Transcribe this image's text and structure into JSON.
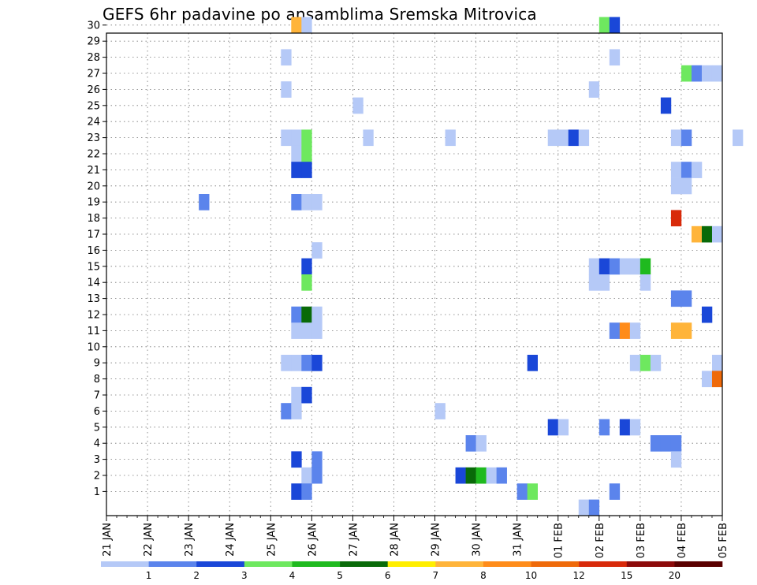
{
  "chart_data": {
    "type": "heatmap",
    "title": "GEFS 6hr padavine po ansamblima Sremska Mitrovica",
    "x_ticks": [
      "21 JAN",
      "22 JAN",
      "23 JAN",
      "24 JAN",
      "25 JAN",
      "26 JAN",
      "27 JAN",
      "28 JAN",
      "29 JAN",
      "30 JAN",
      "31 JAN",
      "01 FEB",
      "02 FEB",
      "03 FEB",
      "04 FEB",
      "05 FEB"
    ],
    "y_ticks": [
      "1",
      "2",
      "3",
      "4",
      "5",
      "6",
      "7",
      "8",
      "9",
      "10",
      "11",
      "12",
      "13",
      "14",
      "15",
      "16",
      "17",
      "18",
      "19",
      "20",
      "21",
      "22",
      "23",
      "24",
      "25",
      "26",
      "27",
      "28",
      "29",
      "30"
    ],
    "legend": {
      "labels": [
        "1",
        "2",
        "3",
        "4",
        "5",
        "6",
        "7",
        "8",
        "10",
        "12",
        "15",
        "20"
      ],
      "colors": [
        "#b5c9f7",
        "#5b84ec",
        "#1a47d8",
        "#6ee85f",
        "#1fba1f",
        "#096a09",
        "#ffee00",
        "#ffb43a",
        "#ff8c1a",
        "#ef6a0a",
        "#d82a0a",
        "#8c0a0a",
        "#5a0000"
      ]
    },
    "cells": [
      {
        "x": "25 JAN 18Z",
        "member": 30,
        "value": 8.5
      },
      {
        "x": "26 JAN 00Z",
        "member": 30,
        "value": 1.5
      },
      {
        "x": "02 FEB 06Z",
        "member": 30,
        "value": 4.5
      },
      {
        "x": "02 FEB 12Z",
        "member": 30,
        "value": 3.5
      },
      {
        "x": "25 JAN 12Z",
        "member": 28,
        "value": 1.5
      },
      {
        "x": "02 FEB 12Z",
        "member": 28,
        "value": 1.5
      },
      {
        "x": "04 FEB 06Z",
        "member": 27,
        "value": 4.5
      },
      {
        "x": "04 FEB 12Z",
        "member": 27,
        "value": 2.5
      },
      {
        "x": "04 FEB 18Z",
        "member": 27,
        "value": 1.5
      },
      {
        "x": "05 FEB 00Z",
        "member": 27,
        "value": 1.5
      },
      {
        "x": "25 JAN 12Z",
        "member": 26,
        "value": 1.5
      },
      {
        "x": "02 FEB 00Z",
        "member": 26,
        "value": 1.5
      },
      {
        "x": "27 JAN 06Z",
        "member": 25,
        "value": 1.5
      },
      {
        "x": "03 FEB 18Z",
        "member": 25,
        "value": 3.5
      },
      {
        "x": "25 JAN 12Z",
        "member": 23,
        "value": 1.5
      },
      {
        "x": "25 JAN 18Z",
        "member": 23,
        "value": 1.5
      },
      {
        "x": "26 JAN 00Z",
        "member": 23,
        "value": 4.5
      },
      {
        "x": "27 JAN 12Z",
        "member": 23,
        "value": 1.5
      },
      {
        "x": "29 JAN 12Z",
        "member": 23,
        "value": 1.5
      },
      {
        "x": "01 FEB 00Z",
        "member": 23,
        "value": 1.5
      },
      {
        "x": "01 FEB 06Z",
        "member": 23,
        "value": 1.5
      },
      {
        "x": "01 FEB 12Z",
        "member": 23,
        "value": 3.5
      },
      {
        "x": "01 FEB 18Z",
        "member": 23,
        "value": 1.5
      },
      {
        "x": "04 FEB 00Z",
        "member": 23,
        "value": 1.5
      },
      {
        "x": "04 FEB 06Z",
        "member": 23,
        "value": 2.5
      },
      {
        "x": "05 FEB 12Z",
        "member": 23,
        "value": 1.5
      },
      {
        "x": "25 JAN 18Z",
        "member": 22,
        "value": 1.5
      },
      {
        "x": "26 JAN 00Z",
        "member": 22,
        "value": 4.5
      },
      {
        "x": "25 JAN 18Z",
        "member": 21,
        "value": 3.5
      },
      {
        "x": "26 JAN 00Z",
        "member": 21,
        "value": 3.5
      },
      {
        "x": "04 FEB 00Z",
        "member": 21,
        "value": 1.5
      },
      {
        "x": "04 FEB 06Z",
        "member": 21,
        "value": 2.5
      },
      {
        "x": "04 FEB 12Z",
        "member": 21,
        "value": 1.5
      },
      {
        "x": "04 FEB 00Z",
        "member": 20,
        "value": 1.5
      },
      {
        "x": "04 FEB 06Z",
        "member": 20,
        "value": 1.5
      },
      {
        "x": "23 JAN 12Z",
        "member": 19,
        "value": 2.5
      },
      {
        "x": "25 JAN 18Z",
        "member": 19,
        "value": 2.5
      },
      {
        "x": "26 JAN 00Z",
        "member": 19,
        "value": 1.5
      },
      {
        "x": "26 JAN 06Z",
        "member": 19,
        "value": 1.5
      },
      {
        "x": "04 FEB 00Z",
        "member": 18,
        "value": 16
      },
      {
        "x": "04 FEB 12Z",
        "member": 17,
        "value": 9
      },
      {
        "x": "04 FEB 18Z",
        "member": 17,
        "value": 6.5
      },
      {
        "x": "05 FEB 00Z",
        "member": 17,
        "value": 1.5
      },
      {
        "x": "26 JAN 06Z",
        "member": 16,
        "value": 1.5
      },
      {
        "x": "26 JAN 00Z",
        "member": 15,
        "value": 3.5
      },
      {
        "x": "02 FEB 00Z",
        "member": 15,
        "value": 1.5
      },
      {
        "x": "02 FEB 06Z",
        "member": 15,
        "value": 3.5
      },
      {
        "x": "02 FEB 12Z",
        "member": 15,
        "value": 2.5
      },
      {
        "x": "02 FEB 18Z",
        "member": 15,
        "value": 1.5
      },
      {
        "x": "03 FEB 00Z",
        "member": 15,
        "value": 1.5
      },
      {
        "x": "03 FEB 06Z",
        "member": 15,
        "value": 5.5
      },
      {
        "x": "26 JAN 00Z",
        "member": 14,
        "value": 4.5
      },
      {
        "x": "02 FEB 00Z",
        "member": 14,
        "value": 1.5
      },
      {
        "x": "02 FEB 06Z",
        "member": 14,
        "value": 1.5
      },
      {
        "x": "03 FEB 06Z",
        "member": 14,
        "value": 1.5
      },
      {
        "x": "04 FEB 00Z",
        "member": 13,
        "value": 2.5
      },
      {
        "x": "04 FEB 06Z",
        "member": 13,
        "value": 2.5
      },
      {
        "x": "25 JAN 18Z",
        "member": 12,
        "value": 2.5
      },
      {
        "x": "26 JAN 00Z",
        "member": 12,
        "value": 6.5
      },
      {
        "x": "26 JAN 06Z",
        "member": 12,
        "value": 1.5
      },
      {
        "x": "04 FEB 18Z",
        "member": 12,
        "value": 3.5
      },
      {
        "x": "25 JAN 18Z",
        "member": 11,
        "value": 1.5
      },
      {
        "x": "26 JAN 00Z",
        "member": 11,
        "value": 1.5
      },
      {
        "x": "26 JAN 06Z",
        "member": 11,
        "value": 1.5
      },
      {
        "x": "02 FEB 12Z",
        "member": 11,
        "value": 2.5
      },
      {
        "x": "02 FEB 18Z",
        "member": 11,
        "value": 11
      },
      {
        "x": "03 FEB 00Z",
        "member": 11,
        "value": 1.5
      },
      {
        "x": "04 FEB 00Z",
        "member": 11,
        "value": 9
      },
      {
        "x": "04 FEB 06Z",
        "member": 11,
        "value": 9
      },
      {
        "x": "25 JAN 12Z",
        "member": 9,
        "value": 1.5
      },
      {
        "x": "25 JAN 18Z",
        "member": 9,
        "value": 1.5
      },
      {
        "x": "26 JAN 00Z",
        "member": 9,
        "value": 2.5
      },
      {
        "x": "26 JAN 06Z",
        "member": 9,
        "value": 3.5
      },
      {
        "x": "31 JAN 12Z",
        "member": 9,
        "value": 3.5
      },
      {
        "x": "03 FEB 00Z",
        "member": 9,
        "value": 1.5
      },
      {
        "x": "03 FEB 06Z",
        "member": 9,
        "value": 4.5
      },
      {
        "x": "03 FEB 12Z",
        "member": 9,
        "value": 1.5
      },
      {
        "x": "05 FEB 00Z",
        "member": 9,
        "value": 1.5
      },
      {
        "x": "04 FEB 18Z",
        "member": 8,
        "value": 1.5
      },
      {
        "x": "05 FEB 00Z",
        "member": 8,
        "value": 13
      },
      {
        "x": "25 JAN 18Z",
        "member": 7,
        "value": 1.5
      },
      {
        "x": "26 JAN 00Z",
        "member": 7,
        "value": 3.5
      },
      {
        "x": "25 JAN 12Z",
        "member": 6,
        "value": 2.5
      },
      {
        "x": "25 JAN 18Z",
        "member": 6,
        "value": 1.5
      },
      {
        "x": "29 JAN 06Z",
        "member": 6,
        "value": 1.5
      },
      {
        "x": "01 FEB 00Z",
        "member": 5,
        "value": 3.5
      },
      {
        "x": "01 FEB 06Z",
        "member": 5,
        "value": 1.5
      },
      {
        "x": "02 FEB 06Z",
        "member": 5,
        "value": 2.5
      },
      {
        "x": "02 FEB 18Z",
        "member": 5,
        "value": 3.5
      },
      {
        "x": "03 FEB 00Z",
        "member": 5,
        "value": 1.5
      },
      {
        "x": "30 JAN 00Z",
        "member": 4,
        "value": 2.5
      },
      {
        "x": "30 JAN 06Z",
        "member": 4,
        "value": 1.5
      },
      {
        "x": "03 FEB 12Z",
        "member": 4,
        "value": 2.5
      },
      {
        "x": "03 FEB 18Z",
        "member": 4,
        "value": 2.5
      },
      {
        "x": "04 FEB 00Z",
        "member": 4,
        "value": 2.5
      },
      {
        "x": "25 JAN 18Z",
        "member": 3,
        "value": 3.5
      },
      {
        "x": "26 JAN 06Z",
        "member": 3,
        "value": 2.5
      },
      {
        "x": "04 FEB 00Z",
        "member": 3,
        "value": 1.5
      },
      {
        "x": "26 JAN 00Z",
        "member": 2,
        "value": 1.5
      },
      {
        "x": "26 JAN 06Z",
        "member": 2,
        "value": 2.5
      },
      {
        "x": "29 JAN 18Z",
        "member": 2,
        "value": 3.5
      },
      {
        "x": "30 JAN 00Z",
        "member": 2,
        "value": 6.5
      },
      {
        "x": "30 JAN 06Z",
        "member": 2,
        "value": 5.5
      },
      {
        "x": "30 JAN 12Z",
        "member": 2,
        "value": 1.5
      },
      {
        "x": "30 JAN 18Z",
        "member": 2,
        "value": 2.5
      },
      {
        "x": "25 JAN 18Z",
        "member": 1,
        "value": 3.5
      },
      {
        "x": "26 JAN 00Z",
        "member": 1,
        "value": 2.5
      },
      {
        "x": "31 JAN 06Z",
        "member": 1,
        "value": 2.5
      },
      {
        "x": "31 JAN 12Z",
        "member": 1,
        "value": 4.5
      },
      {
        "x": "02 FEB 12Z",
        "member": 1,
        "value": 2.5
      },
      {
        "x": "01 FEB 18Z",
        "member": 0,
        "value": 1.5
      },
      {
        "x": "02 FEB 00Z",
        "member": 0,
        "value": 2.5
      }
    ]
  }
}
